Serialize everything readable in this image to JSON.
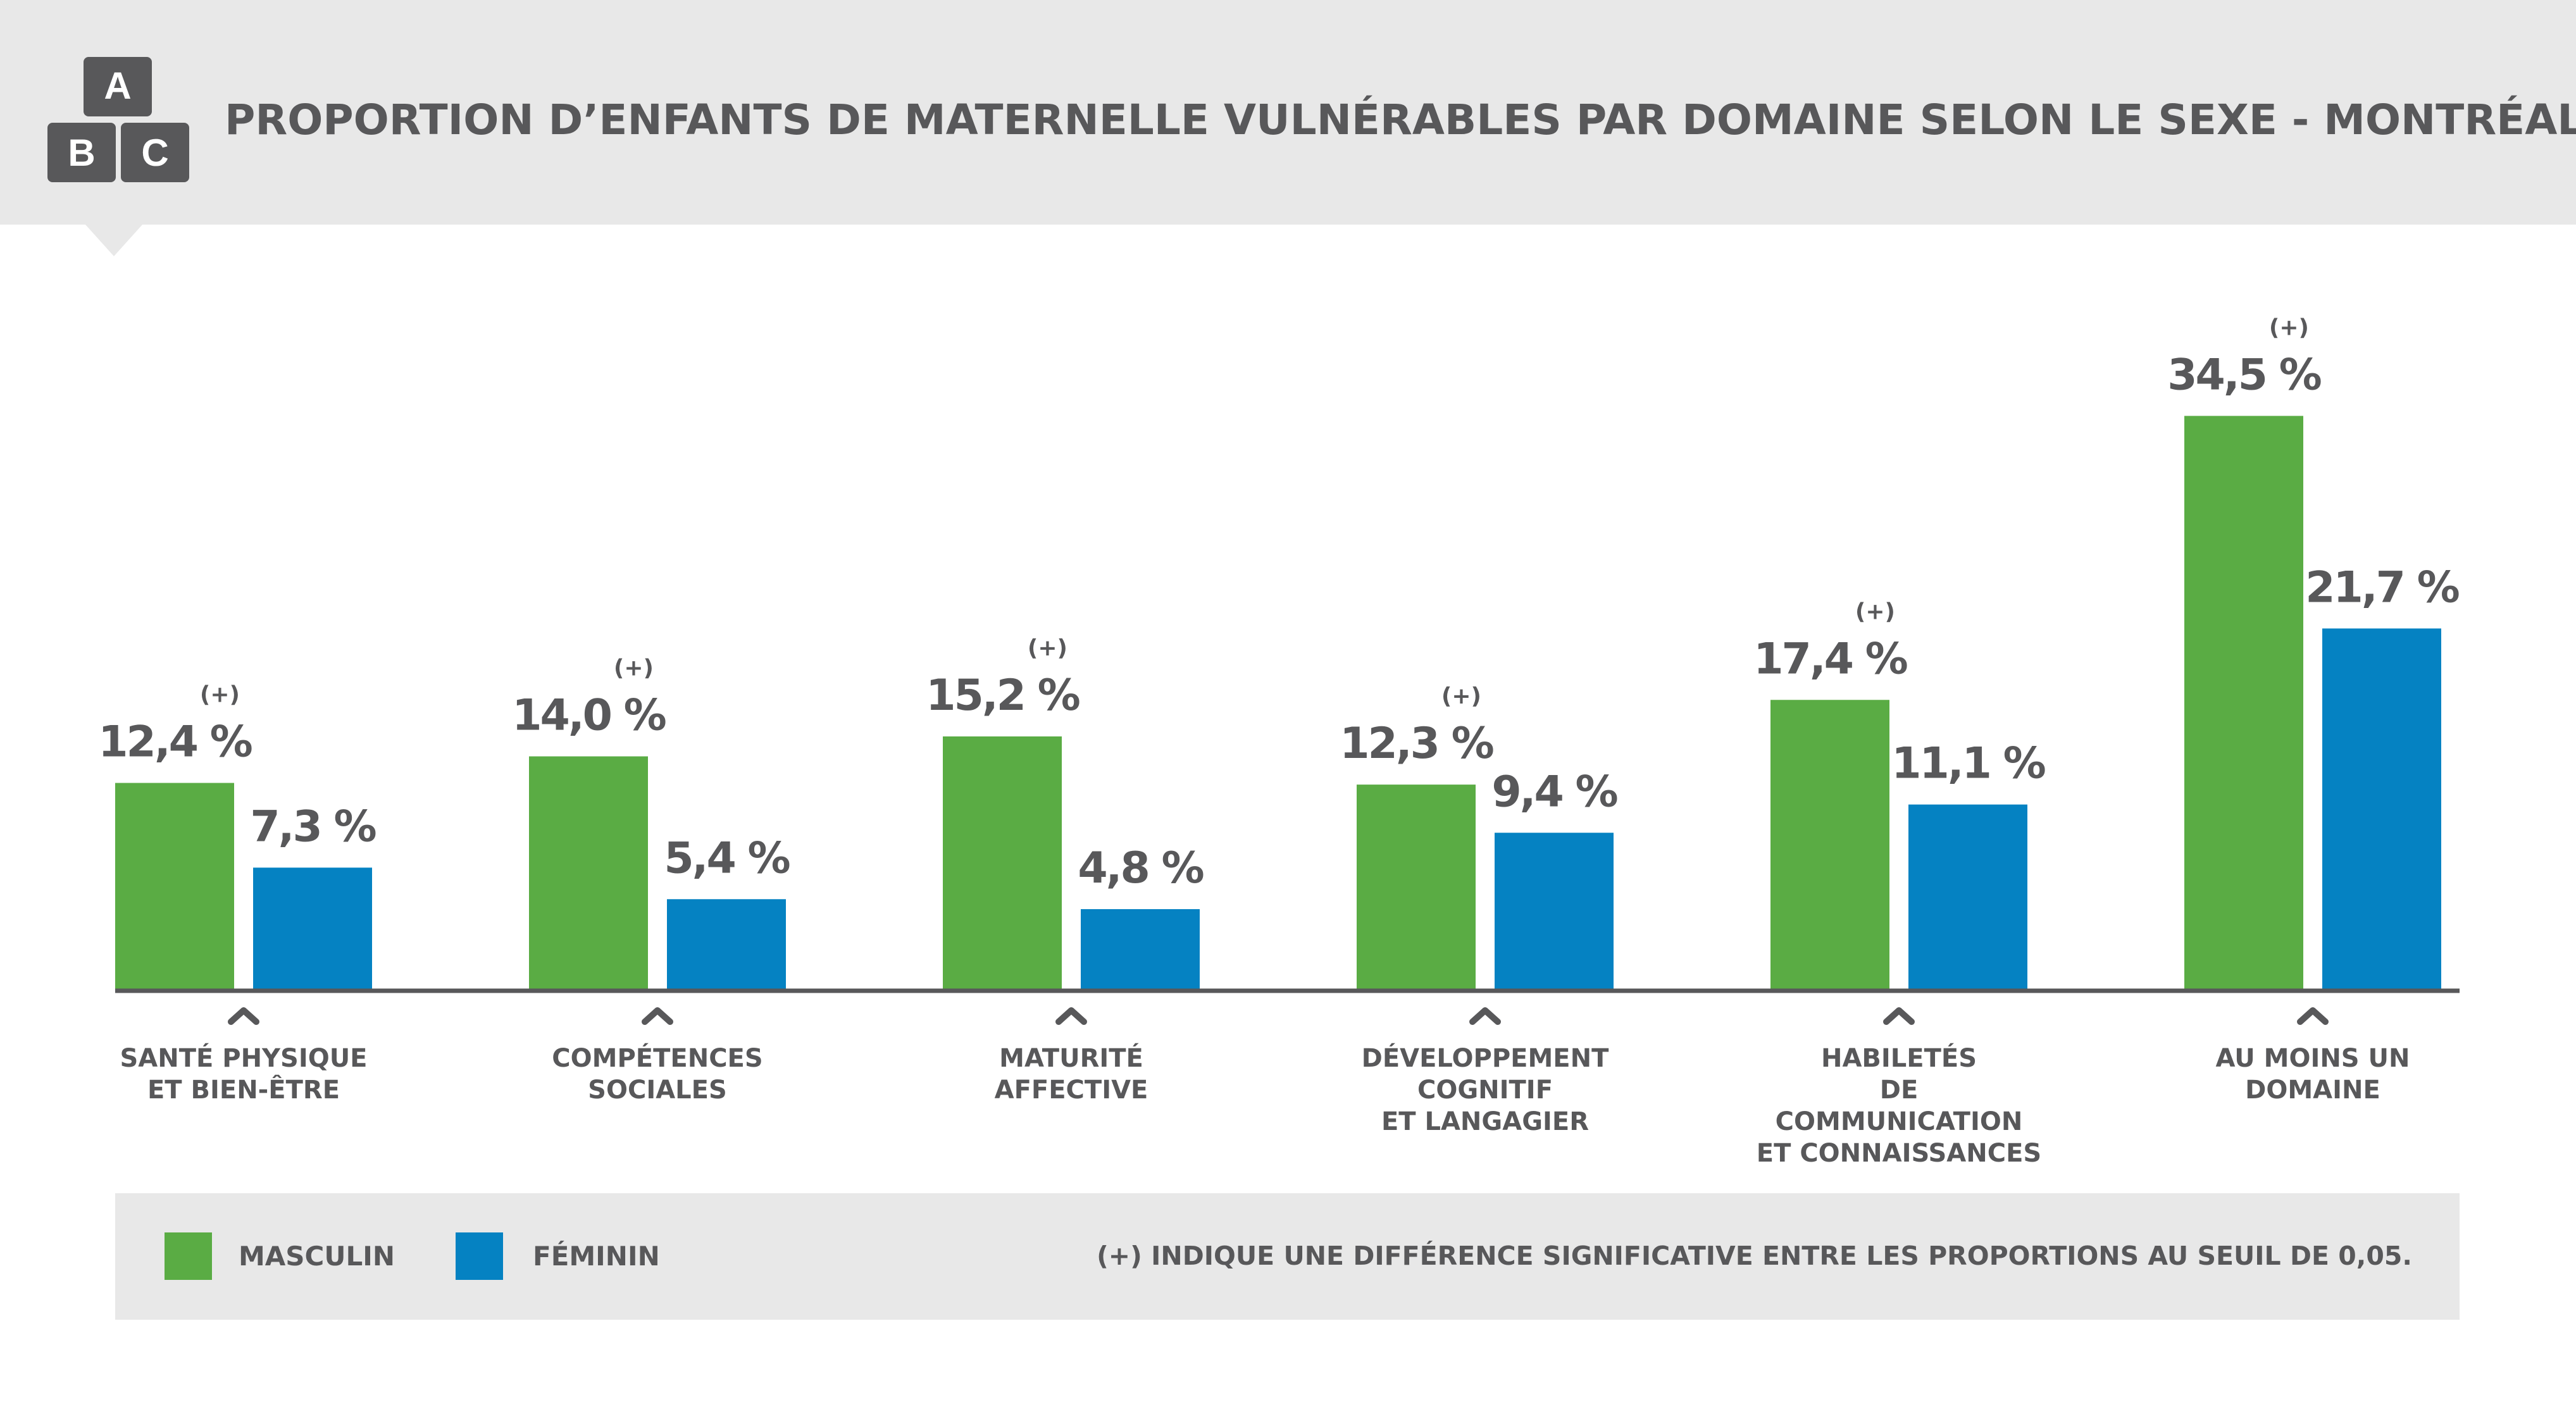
{
  "header": {
    "title": "PROPORTION D’ENFANTS DE MATERNELLE VULNÉRABLES PAR DOMAINE SELON LE SEXE - MONTRÉAL",
    "logo_letters": [
      "A",
      "B",
      "C"
    ]
  },
  "colors": {
    "masculin": "#5aac44",
    "feminin": "#0582c2",
    "text": "#58585a",
    "panel": "#e8e8e8"
  },
  "chart_data": {
    "type": "bar",
    "unit": "%",
    "ylim": [
      0,
      40
    ],
    "categories": [
      "SANTÉ PHYSIQUE\nET BIEN-ÊTRE",
      "COMPÉTENCES\nSOCIALES",
      "MATURITÉ\nAFFECTIVE",
      "DÉVELOPPEMENT\nCOGNITIF\nET LANGAGIER",
      "HABILETÉS\nDE\nCOMMUNICATION\nET CONNAISSANCES",
      "AU MOINS UN\nDOMAINE"
    ],
    "series": [
      {
        "name": "MASCULIN",
        "values": [
          12.4,
          14.0,
          15.2,
          12.3,
          17.4,
          34.5
        ],
        "labels": [
          "12,4 %",
          "14,0 %",
          "15,2 %",
          "12,3 %",
          "17,4 %",
          "34,5 %"
        ]
      },
      {
        "name": "FÉMININ",
        "values": [
          7.3,
          5.4,
          4.8,
          9.4,
          11.1,
          21.7
        ],
        "labels": [
          "7,3 %",
          "5,4 %",
          "4,8 %",
          "9,4 %",
          "11,1 %",
          "21,7 %"
        ]
      }
    ],
    "significance_marker": "(+)",
    "significant": [
      true,
      true,
      true,
      true,
      true,
      true
    ],
    "grid": false,
    "legend": "bottom"
  },
  "legend": {
    "masculin_label": "MASCULIN",
    "feminin_label": "FÉMININ",
    "note": "(+)  INDIQUE UNE DIFFÉRENCE SIGNIFICATIVE ENTRE LES PROPORTIONS AU SEUIL DE 0,05."
  }
}
